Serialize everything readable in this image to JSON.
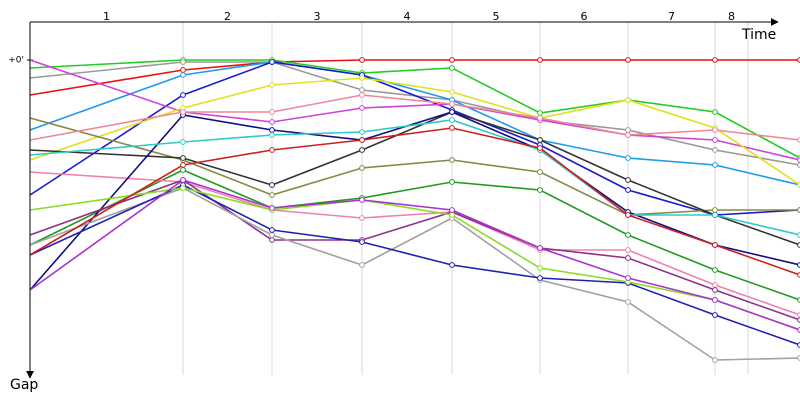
{
  "chart_data": {
    "type": "line",
    "x_label": "Time",
    "y_label": "Gap",
    "laps": [
      "1",
      "2",
      "3",
      "4",
      "5",
      "6",
      "7",
      "8"
    ],
    "lap_lines": [
      153,
      242,
      332,
      422,
      510,
      598,
      685,
      718
    ],
    "x": [
      0,
      153,
      242,
      332,
      422,
      510,
      598,
      685,
      770
    ],
    "xlim": [
      0,
      770
    ],
    "ylim": [
      0,
      315
    ],
    "yticks": [
      {
        "value": 0,
        "label": "+0'"
      }
    ],
    "markers": true,
    "series": [
      {
        "color": "#e81010",
        "values": [
          35,
          10,
          2,
          0,
          0,
          0,
          0,
          0,
          0
        ]
      },
      {
        "color": "#22cc22",
        "values": [
          8,
          0,
          0,
          13,
          8,
          53,
          40,
          52,
          98
        ]
      },
      {
        "color": "#999999",
        "values": [
          18,
          2,
          2,
          30,
          40,
          60,
          70,
          90,
          105
        ]
      },
      {
        "color": "#1e9be8",
        "values": [
          70,
          15,
          2,
          15,
          40,
          80,
          98,
          105,
          125
        ]
      },
      {
        "color": "#1a1ad0",
        "values": [
          135,
          35,
          2,
          15,
          50,
          85,
          130,
          155,
          150
        ]
      },
      {
        "color": "#cc44dd",
        "values": [
          0,
          52,
          62,
          48,
          44,
          60,
          75,
          80,
          100
        ]
      },
      {
        "color": "#e0e020",
        "values": [
          100,
          48,
          25,
          18,
          32,
          58,
          40,
          68,
          125
        ]
      },
      {
        "color": "#888844",
        "values": [
          58,
          100,
          135,
          108,
          100,
          112,
          155,
          150,
          150
        ]
      },
      {
        "color": "#333333",
        "values": [
          90,
          98,
          125,
          90,
          52,
          80,
          120,
          155,
          185
        ]
      },
      {
        "color": "#229922",
        "values": [
          185,
          110,
          148,
          138,
          122,
          130,
          175,
          210,
          240
        ]
      },
      {
        "color": "#f080b0",
        "values": [
          112,
          122,
          150,
          158,
          152,
          190,
          190,
          225,
          255
        ]
      },
      {
        "color": "#101080",
        "values": [
          230,
          55,
          70,
          80,
          52,
          90,
          152,
          185,
          205
        ]
      },
      {
        "color": "#30c8c8",
        "values": [
          95,
          82,
          75,
          72,
          60,
          90,
          155,
          155,
          175
        ]
      },
      {
        "color": "#883388",
        "values": [
          175,
          120,
          180,
          180,
          152,
          188,
          198,
          230,
          260
        ]
      },
      {
        "color": "#a0a0a0",
        "values": [
          185,
          128,
          175,
          205,
          158,
          220,
          242,
          300,
          298
        ]
      },
      {
        "color": "#2020b0",
        "values": [
          195,
          125,
          170,
          182,
          205,
          218,
          223,
          255,
          285
        ]
      },
      {
        "color": "#88dd22",
        "values": [
          150,
          128,
          150,
          140,
          155,
          208,
          222,
          240,
          270
        ]
      },
      {
        "color": "#cc2020",
        "values": [
          195,
          105,
          90,
          80,
          68,
          88,
          155,
          185,
          215
        ]
      },
      {
        "color": "#aa33cc",
        "values": [
          230,
          120,
          148,
          140,
          150,
          188,
          218,
          240,
          270
        ]
      },
      {
        "color": "#ee8899",
        "values": [
          80,
          52,
          52,
          35,
          44,
          58,
          75,
          70,
          80
        ]
      }
    ]
  }
}
